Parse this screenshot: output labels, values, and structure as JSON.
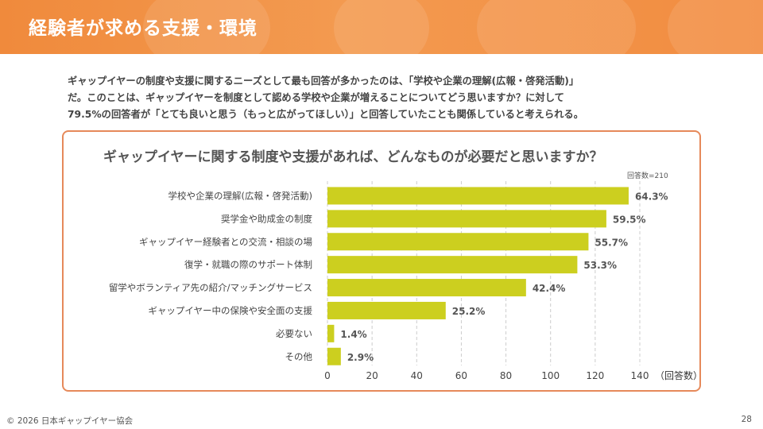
{
  "header": {
    "title": "経験者が求める支援・環境"
  },
  "intro": {
    "lines": [
      "ギャップイヤーの制度や支援に関するニーズとして最も回答が多かったのは、「学校や企業の理解(広報・啓発活動)」",
      "だ。このことは、ギャップイヤーを制度として認める学校や企業が増えることについてどう思いますか？に対して",
      "79.5%の回答者が「とても良いと思う（もっと広がってほしい）」と回答していたことも関係していると考えられる。"
    ]
  },
  "chart_data": {
    "type": "bar",
    "orientation": "horizontal",
    "title": "ギャップイヤーに関する制度や支援があれば、どんなものが必要だと思いますか？",
    "note": "回答数=210",
    "xlabel": "（回答数）",
    "ylabel": "",
    "xlim": [
      0,
      140
    ],
    "xticks": [
      0,
      20,
      40,
      60,
      80,
      100,
      120,
      140
    ],
    "grid": "vertical dashed",
    "bar_color": "#cccf1f",
    "categories": [
      "学校や企業の理解(広報・啓発活動)",
      "奨学金や助成金の制度",
      "ギャップイヤー経験者との交流・相談の場",
      "復学・就職の際のサポート体制",
      "留学やボランティア先の紹介/マッチングサービス",
      "ギャップイヤー中の保険や安全面の支援",
      "必要ない",
      "その他"
    ],
    "values": [
      135,
      125,
      117,
      112,
      89,
      53,
      3,
      6
    ],
    "data_labels": [
      "64.3%",
      "59.5%",
      "55.7%",
      "53.3%",
      "42.4%",
      "25.2%",
      "1.4%",
      "2.9%"
    ]
  },
  "footer": {
    "copyright": "© 2026 日本ギャップイヤー協会",
    "page_number": "28"
  },
  "colors": {
    "header": "#f08a3c",
    "panel_border": "#e6895a",
    "bar": "#cccf1f"
  }
}
